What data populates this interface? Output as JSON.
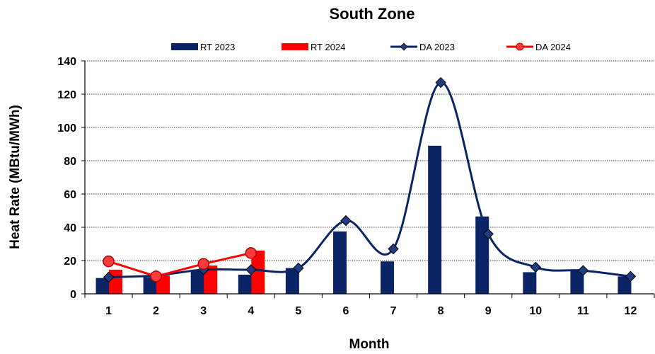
{
  "chart_data": {
    "type": "bar",
    "title": "South Zone",
    "xlabel": "Month",
    "ylabel": "Heat Rate (MBtu/MWh)",
    "categories": [
      "1",
      "2",
      "3",
      "4",
      "5",
      "6",
      "7",
      "8",
      "9",
      "10",
      "11",
      "12"
    ],
    "ylim": [
      0,
      140
    ],
    "yticks": [
      0,
      20,
      40,
      60,
      80,
      100,
      120,
      140
    ],
    "grid": true,
    "legend_position": "top",
    "series": [
      {
        "name": "RT 2023",
        "kind": "bar",
        "color": "#0b2466",
        "values": [
          9.5,
          10,
          14,
          11.5,
          15.5,
          37.5,
          19.5,
          89,
          46.5,
          13,
          14,
          10.5
        ]
      },
      {
        "name": "RT 2024",
        "kind": "bar",
        "color": "#ff0000",
        "values": [
          14.5,
          11,
          17,
          26,
          null,
          null,
          null,
          null,
          null,
          null,
          null,
          null
        ]
      },
      {
        "name": "DA 2023",
        "kind": "line",
        "smooth": true,
        "marker": "diamond",
        "color": "#0b2466",
        "values": [
          10,
          11,
          14.5,
          14.5,
          15.5,
          44,
          27,
          127,
          36,
          16,
          14,
          10.5
        ]
      },
      {
        "name": "DA 2024",
        "kind": "line",
        "smooth": false,
        "marker": "circle",
        "color": "#ff0000",
        "values": [
          19.5,
          10.5,
          18,
          24.5,
          null,
          null,
          null,
          null,
          null,
          null,
          null,
          null
        ]
      }
    ]
  }
}
